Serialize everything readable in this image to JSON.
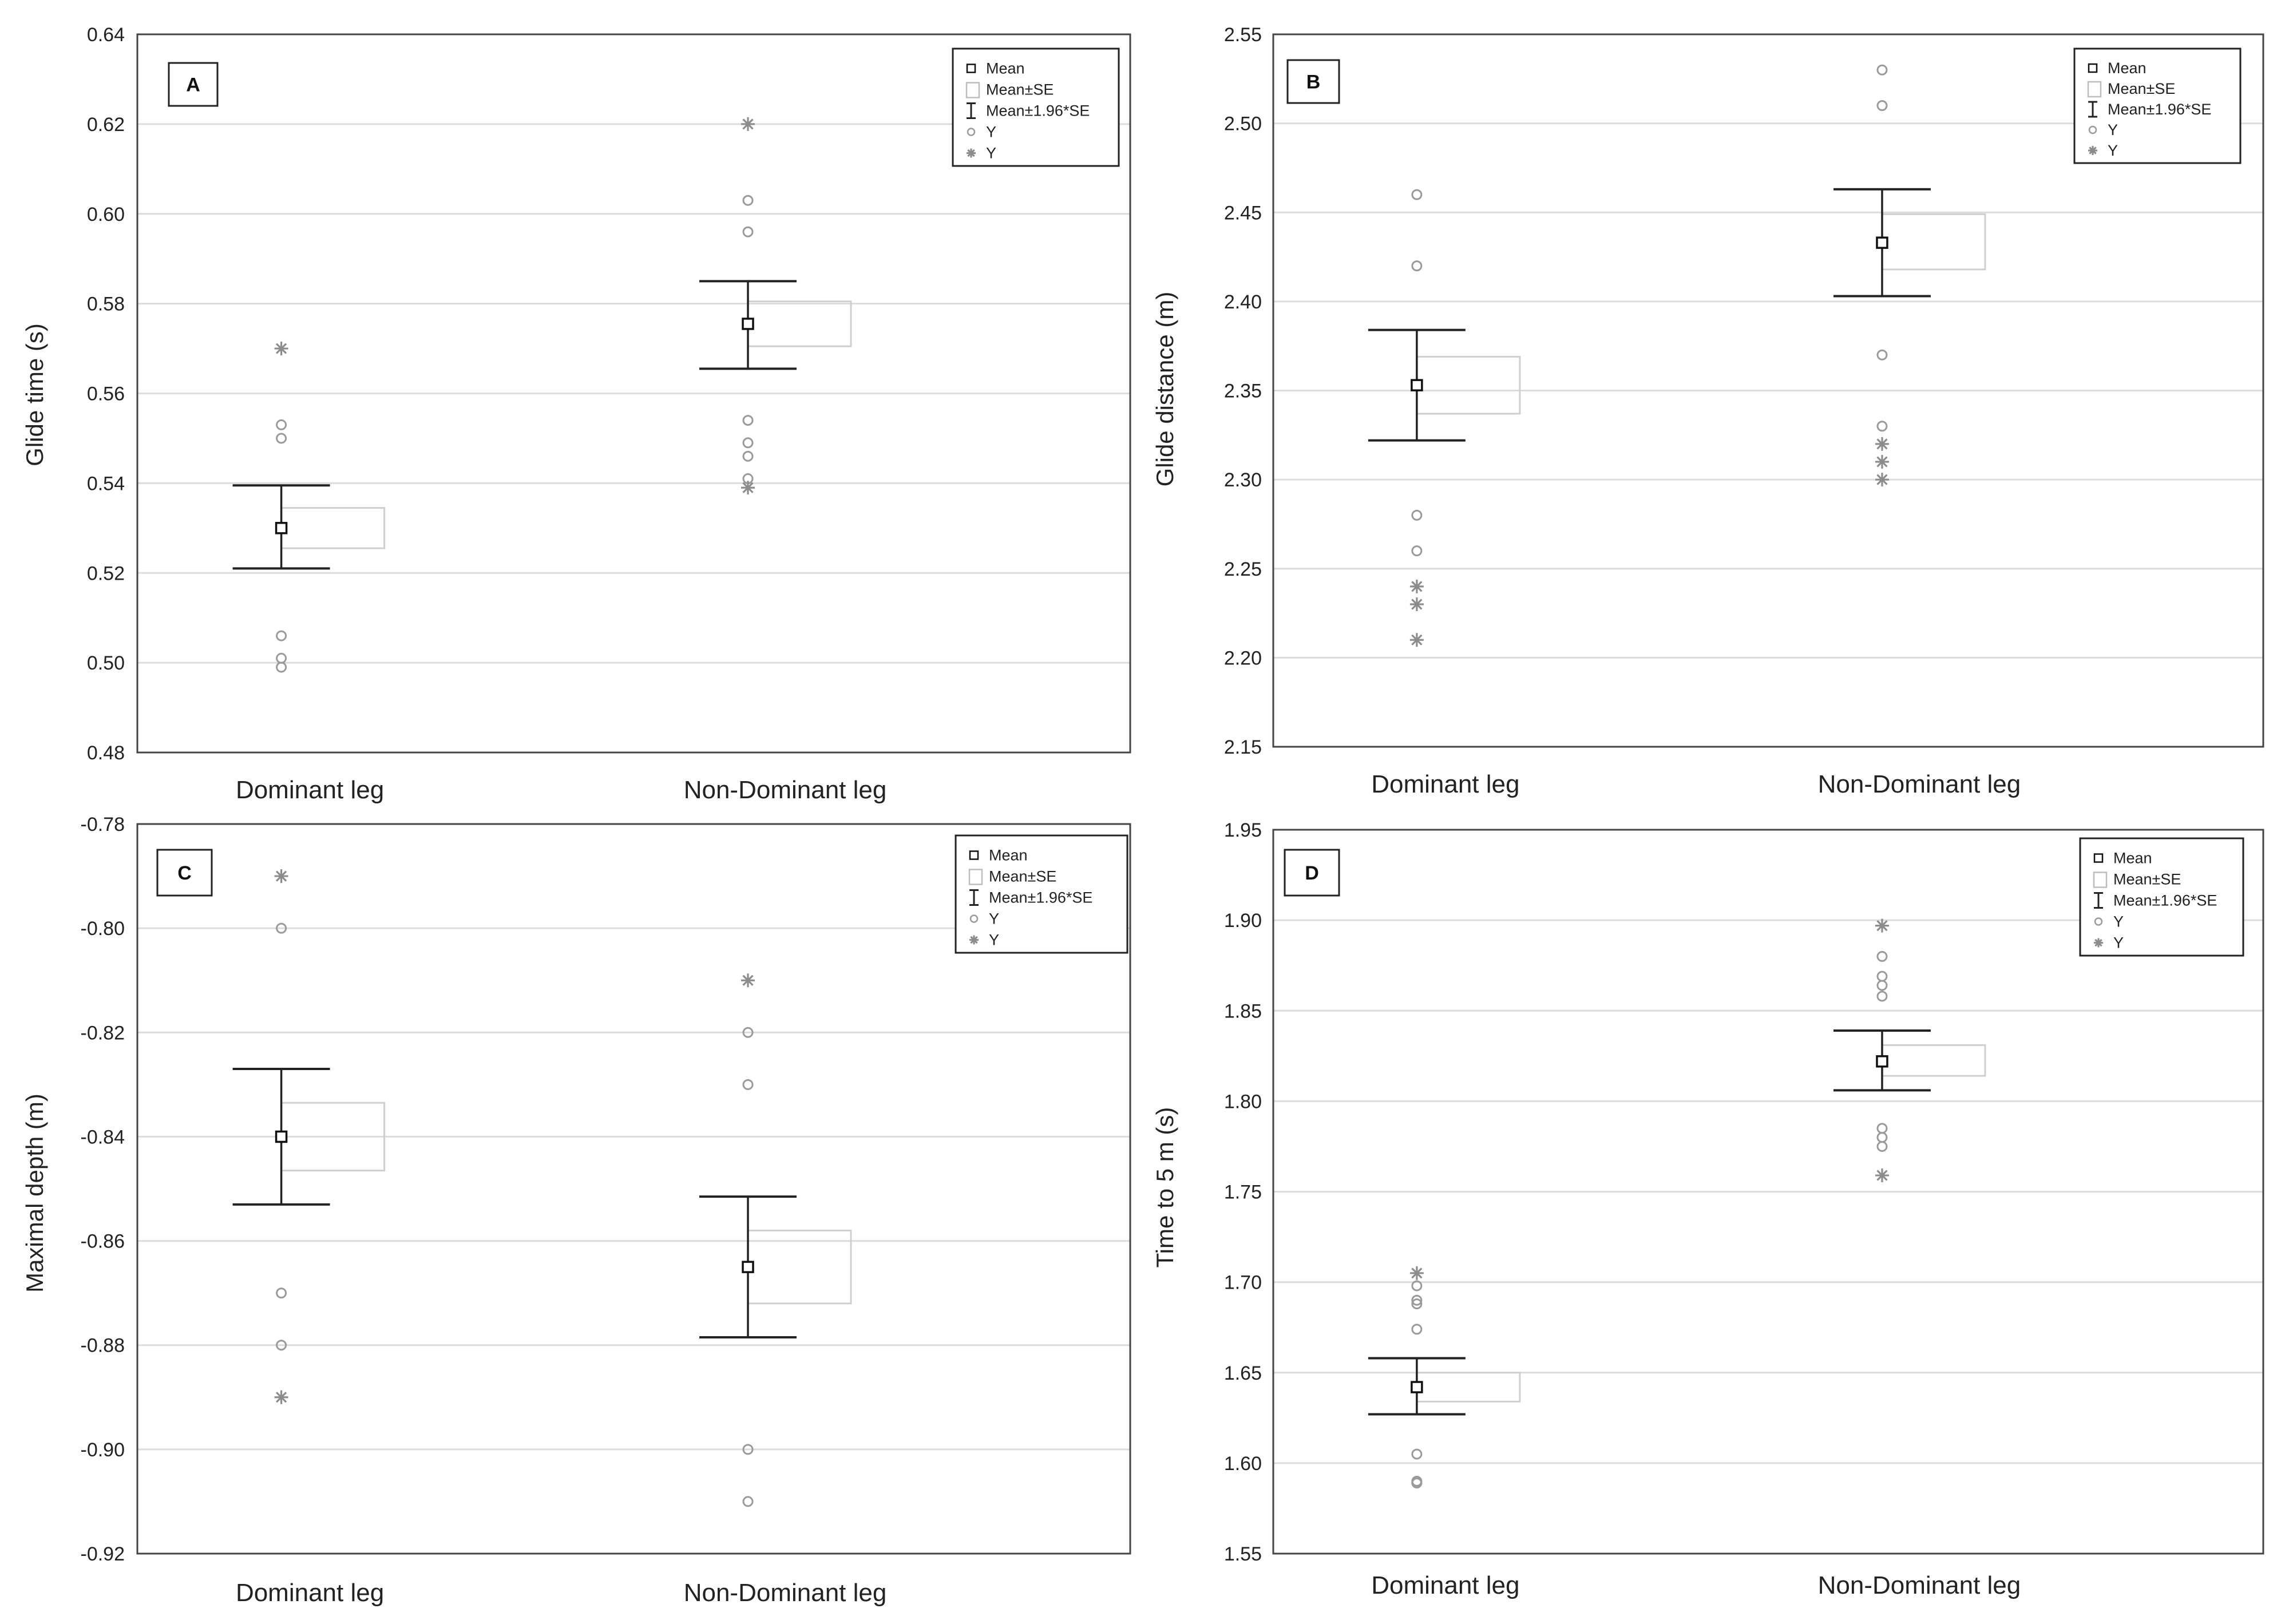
{
  "chart_data": [
    {
      "type": "box",
      "panel_label": "A",
      "ylabel": "Glide time (s)",
      "ylim": [
        0.48,
        0.64
      ],
      "yticks": [
        "0.48",
        "0.50",
        "0.52",
        "0.54",
        "0.56",
        "0.58",
        "0.60",
        "0.62",
        "0.64"
      ],
      "categories": [
        "Dominant leg",
        "Non-Dominant leg"
      ],
      "legend": [
        "Mean",
        "Mean±SE",
        "Mean±1.96*SE",
        "Y",
        "Y"
      ],
      "groups": [
        {
          "mean": 0.53,
          "se_low": 0.5255,
          "se_high": 0.5345,
          "ci_low": 0.521,
          "ci_high": 0.5395,
          "outliers": [
            0.553,
            0.55,
            0.506,
            0.501,
            0.499
          ],
          "extremes": [
            0.57
          ]
        },
        {
          "mean": 0.5755,
          "se_low": 0.5705,
          "se_high": 0.5805,
          "ci_low": 0.5655,
          "ci_high": 0.585,
          "outliers": [
            0.603,
            0.596,
            0.554,
            0.549,
            0.546,
            0.541
          ],
          "extremes": [
            0.62,
            0.539
          ]
        }
      ]
    },
    {
      "type": "box",
      "panel_label": "B",
      "ylabel": "Glide distance (m)",
      "ylim": [
        2.15,
        2.55
      ],
      "yticks": [
        "2.15",
        "2.20",
        "2.25",
        "2.30",
        "2.35",
        "2.40",
        "2.45",
        "2.50",
        "2.55"
      ],
      "categories": [
        "Dominant leg",
        "Non-Dominant leg"
      ],
      "legend": [
        "Mean",
        "Mean±SE",
        "Mean±1.96*SE",
        "Y",
        "Y"
      ],
      "groups": [
        {
          "mean": 2.353,
          "se_low": 2.337,
          "se_high": 2.369,
          "ci_low": 2.322,
          "ci_high": 2.384,
          "outliers": [
            2.46,
            2.42,
            2.28,
            2.26
          ],
          "extremes": [
            2.24,
            2.23,
            2.21
          ]
        },
        {
          "mean": 2.433,
          "se_low": 2.418,
          "se_high": 2.449,
          "ci_low": 2.403,
          "ci_high": 2.463,
          "outliers": [
            2.53,
            2.51,
            2.37,
            2.33
          ],
          "extremes": [
            2.32,
            2.31,
            2.3
          ]
        }
      ]
    },
    {
      "type": "box",
      "panel_label": "C",
      "ylabel": "Maximal depth (m)",
      "ylim": [
        -0.92,
        -0.78
      ],
      "yticks": [
        "-0.92",
        "-0.90",
        "-0.88",
        "-0.86",
        "-0.84",
        "-0.82",
        "-0.80",
        "-0.78"
      ],
      "categories": [
        "Dominant leg",
        "Non-Dominant leg"
      ],
      "legend": [
        "Mean",
        "Mean±SE",
        "Mean±1.96*SE",
        "Y",
        "Y"
      ],
      "groups": [
        {
          "mean": -0.84,
          "se_low": -0.8465,
          "se_high": -0.8335,
          "ci_low": -0.853,
          "ci_high": -0.827,
          "outliers": [
            -0.8,
            -0.87,
            -0.88
          ],
          "extremes": [
            -0.79,
            -0.89
          ]
        },
        {
          "mean": -0.865,
          "se_low": -0.872,
          "se_high": -0.858,
          "ci_low": -0.8785,
          "ci_high": -0.8515,
          "outliers": [
            -0.82,
            -0.83,
            -0.9,
            -0.91
          ],
          "extremes": [
            -0.81
          ]
        }
      ]
    },
    {
      "type": "box",
      "panel_label": "D",
      "ylabel": "Time to 5 m (s)",
      "ylim": [
        1.55,
        1.95
      ],
      "yticks": [
        "1.55",
        "1.60",
        "1.65",
        "1.70",
        "1.75",
        "1.80",
        "1.85",
        "1.90",
        "1.95"
      ],
      "categories": [
        "Dominant leg",
        "Non-Dominant leg"
      ],
      "legend": [
        "Mean",
        "Mean±SE",
        "Mean±1.96*SE",
        "Y",
        "Y"
      ],
      "groups": [
        {
          "mean": 1.642,
          "se_low": 1.634,
          "se_high": 1.65,
          "ci_low": 1.627,
          "ci_high": 1.658,
          "outliers": [
            1.698,
            1.69,
            1.688,
            1.674,
            1.605,
            1.59,
            1.589
          ],
          "extremes": [
            1.705
          ]
        },
        {
          "mean": 1.822,
          "se_low": 1.814,
          "se_high": 1.831,
          "ci_low": 1.806,
          "ci_high": 1.839,
          "outliers": [
            1.88,
            1.869,
            1.864,
            1.858,
            1.785,
            1.78,
            1.775
          ],
          "extremes": [
            1.897,
            1.759
          ]
        }
      ]
    }
  ]
}
